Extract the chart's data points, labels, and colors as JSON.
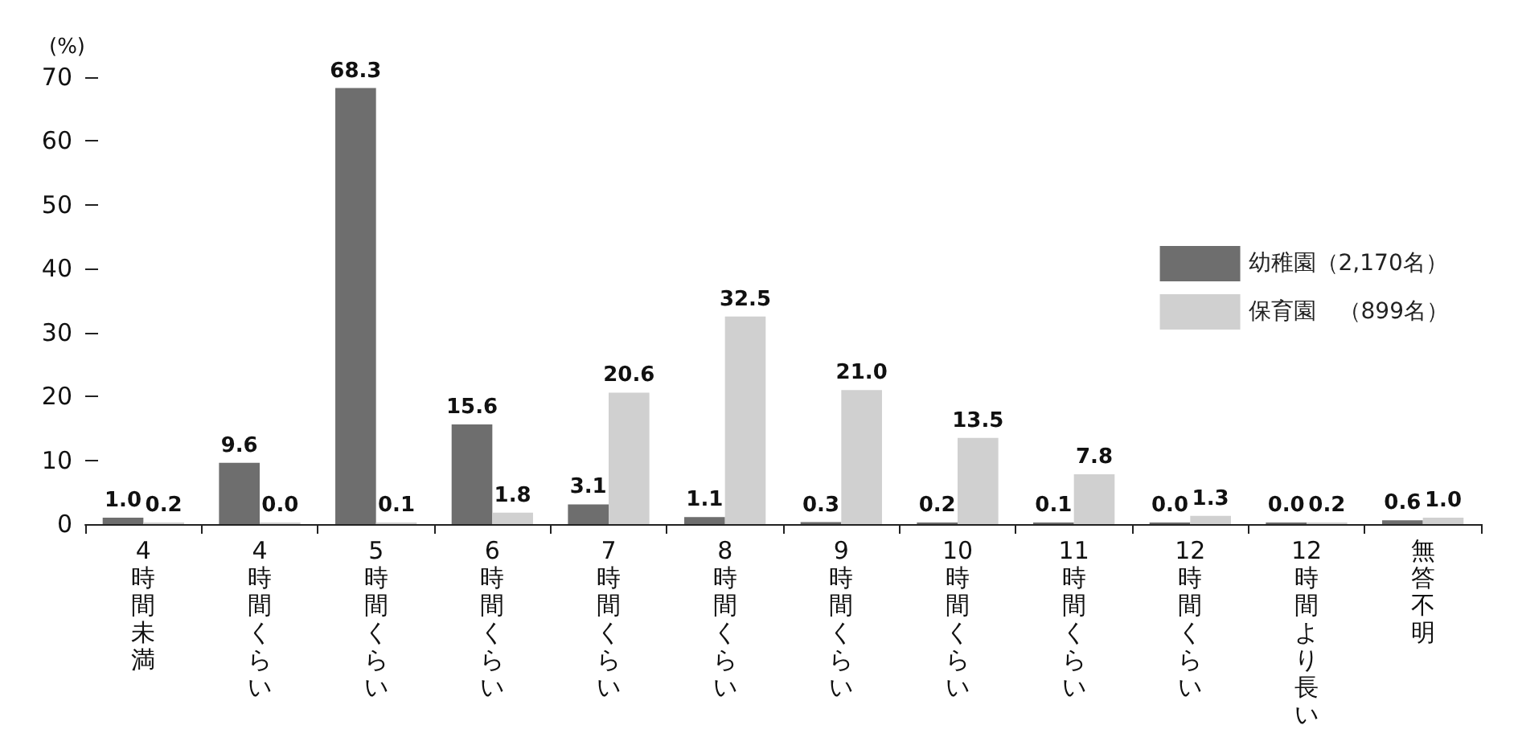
{
  "chart_data": {
    "type": "bar",
    "ylabel": "(%)",
    "categories": [
      "4時間未満",
      "4時間くらい",
      "5時間くらい",
      "6時間くらい",
      "7時間くらい",
      "8時間くらい",
      "9時間くらい",
      "10時間くらい",
      "11時間くらい",
      "12時間くらい",
      "12時間より長い",
      "無答不明"
    ],
    "series": [
      {
        "name": "幼稚園（2,170名）",
        "color": "#6e6e6e",
        "values": [
          1.0,
          9.6,
          68.3,
          15.6,
          3.1,
          1.1,
          0.3,
          0.2,
          0.1,
          0.0,
          0.0,
          0.6
        ],
        "value_labels": [
          "1.0",
          "9.6",
          "68.3",
          "15.6",
          "3.1",
          "1.1",
          "0.3",
          "0.2",
          "0.1",
          "0.0",
          "0.0",
          "0.6"
        ]
      },
      {
        "name": "保育園　（899名）",
        "color": "#d0d0d0",
        "values": [
          0.2,
          0.0,
          0.1,
          1.8,
          20.6,
          32.5,
          21.0,
          13.5,
          7.8,
          1.3,
          0.2,
          1.0
        ],
        "value_labels": [
          "0.2",
          "0.0",
          "0.1",
          "1.8",
          "20.6",
          "32.5",
          "21.0",
          "13.5",
          "7.8",
          "1.3",
          "0.2",
          "1.0"
        ]
      }
    ],
    "ylim": [
      0,
      70
    ],
    "yticks": [
      0,
      10,
      20,
      30,
      40,
      50,
      60,
      70
    ],
    "grid": false,
    "legend": "right"
  }
}
